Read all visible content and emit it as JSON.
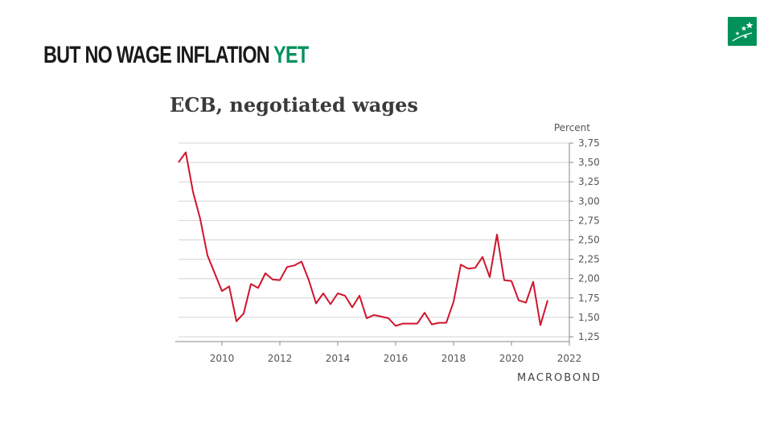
{
  "slide": {
    "title_main": "BUT NO WAGE INFLATION",
    "title_accent": "YET",
    "accent_color": "#00915a",
    "logo_icon": "bnp-stars-logo-icon"
  },
  "source": {
    "brand": "MACROBOND"
  },
  "chart_data": {
    "type": "line",
    "title": "ECB, negotiated wages",
    "ylabel": "Percent",
    "xlabel": "",
    "ylim": [
      1.25,
      3.75
    ],
    "xlim": [
      2008.5,
      2022
    ],
    "y_ticks": [
      "1,25",
      "1,50",
      "1,75",
      "2,00",
      "2,25",
      "2,50",
      "2,75",
      "3,00",
      "3,25",
      "3,50",
      "3,75"
    ],
    "x_ticks": [
      "2010",
      "2012",
      "2014",
      "2016",
      "2018",
      "2020",
      "2022"
    ],
    "grid": true,
    "axis_position": "right",
    "line_color": "#d0142c",
    "series": [
      {
        "x": [
          2008.5,
          2008.75,
          2009.0,
          2009.25,
          2009.5,
          2009.75,
          2010.0,
          2010.25,
          2010.5,
          2010.75,
          2011.0,
          2011.25,
          2011.5,
          2011.75,
          2012.0,
          2012.25,
          2012.5,
          2012.75,
          2013.0,
          2013.25,
          2013.5,
          2013.75,
          2014.0,
          2014.25,
          2014.5,
          2014.75,
          2015.0,
          2015.25,
          2015.5,
          2015.75,
          2016.0,
          2016.25,
          2016.5,
          2016.75,
          2017.0,
          2017.25,
          2017.5,
          2017.75,
          2018.0,
          2018.25,
          2018.5,
          2018.75,
          2019.0,
          2019.25,
          2019.5,
          2019.75,
          2020.0,
          2020.25,
          2020.5,
          2020.75,
          2021.0,
          2021.25,
          2021.5
        ],
        "values": [
          3.5,
          3.63,
          3.12,
          2.77,
          2.3,
          2.07,
          1.84,
          1.9,
          1.45,
          1.55,
          1.93,
          1.88,
          2.07,
          1.99,
          1.98,
          2.15,
          2.17,
          2.22,
          1.98,
          1.68,
          1.81,
          1.67,
          1.81,
          1.78,
          1.63,
          1.78,
          1.49,
          1.53,
          1.51,
          1.49,
          1.39,
          1.42,
          1.42,
          1.42,
          1.56,
          1.41,
          1.43,
          1.43,
          1.7,
          2.18,
          2.13,
          2.14,
          2.28,
          2.02,
          2.57,
          1.98,
          1.97,
          1.72,
          1.69,
          1.96,
          1.4,
          1.72,
          null
        ]
      }
    ]
  }
}
